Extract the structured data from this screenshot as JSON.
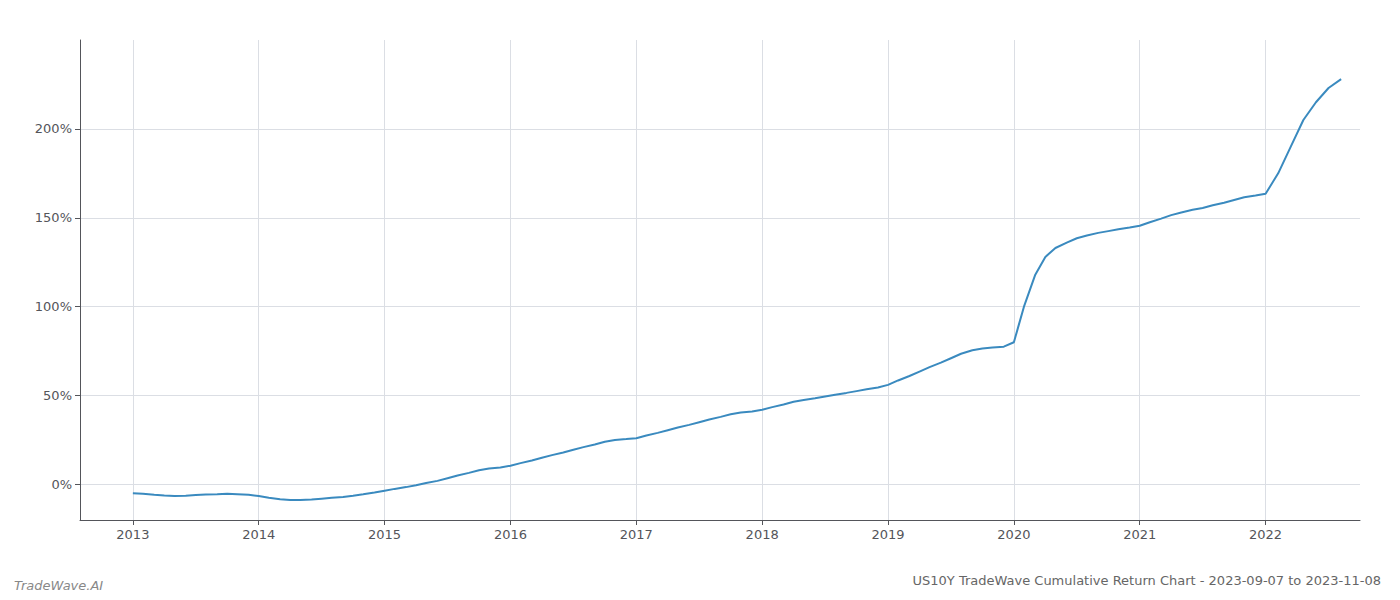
{
  "chart_data": {
    "type": "line",
    "title": "US10Y TradeWave Cumulative Return Chart - 2023-09-07 to 2023-11-08",
    "annotations": [
      "TradeWave.AI"
    ],
    "color": "#3a8abf",
    "grid": true,
    "x": [
      2013.0,
      2013.08,
      2013.17,
      2013.25,
      2013.33,
      2013.42,
      2013.5,
      2013.58,
      2013.67,
      2013.75,
      2013.83,
      2013.92,
      2014.0,
      2014.08,
      2014.17,
      2014.25,
      2014.33,
      2014.42,
      2014.5,
      2014.58,
      2014.67,
      2014.75,
      2014.83,
      2014.92,
      2015.0,
      2015.08,
      2015.17,
      2015.25,
      2015.33,
      2015.42,
      2015.5,
      2015.58,
      2015.67,
      2015.75,
      2015.83,
      2015.92,
      2016.0,
      2016.08,
      2016.17,
      2016.25,
      2016.33,
      2016.42,
      2016.5,
      2016.58,
      2016.67,
      2016.75,
      2016.83,
      2016.92,
      2017.0,
      2017.08,
      2017.17,
      2017.25,
      2017.33,
      2017.42,
      2017.5,
      2017.58,
      2017.67,
      2017.75,
      2017.83,
      2017.92,
      2018.0,
      2018.08,
      2018.17,
      2018.25,
      2018.33,
      2018.42,
      2018.5,
      2018.58,
      2018.67,
      2018.75,
      2018.83,
      2018.92,
      2019.0,
      2019.08,
      2019.17,
      2019.25,
      2019.33,
      2019.42,
      2019.5,
      2019.58,
      2019.67,
      2019.75,
      2019.83,
      2019.92,
      2020.0,
      2020.08,
      2020.17,
      2020.25,
      2020.33,
      2020.42,
      2020.5,
      2020.58,
      2020.67,
      2020.75,
      2020.83,
      2020.92,
      2021.0,
      2021.08,
      2021.17,
      2021.25,
      2021.33,
      2021.42,
      2021.5,
      2021.58,
      2021.67,
      2021.75,
      2021.83,
      2021.92,
      2022.0,
      2022.1,
      2022.2,
      2022.3,
      2022.4,
      2022.5,
      2022.6
    ],
    "values": [
      -5.0,
      -5.3,
      -5.8,
      -6.2,
      -6.5,
      -6.3,
      -6.0,
      -5.7,
      -5.5,
      -5.3,
      -5.5,
      -5.8,
      -6.5,
      -7.5,
      -8.3,
      -8.8,
      -8.8,
      -8.5,
      -8.0,
      -7.5,
      -7.0,
      -6.3,
      -5.5,
      -4.5,
      -3.5,
      -2.5,
      -1.5,
      -0.5,
      0.8,
      2.0,
      3.5,
      5.0,
      6.5,
      8.0,
      9.0,
      9.5,
      10.5,
      12.0,
      13.5,
      15.0,
      16.5,
      18.0,
      19.5,
      21.0,
      22.5,
      24.0,
      25.0,
      25.5,
      26.0,
      27.5,
      29.0,
      30.5,
      32.0,
      33.5,
      35.0,
      36.5,
      38.0,
      39.5,
      40.5,
      41.0,
      42.0,
      43.5,
      45.0,
      46.5,
      47.5,
      48.5,
      49.5,
      50.5,
      51.5,
      52.5,
      53.5,
      54.5,
      56.0,
      58.5,
      61.0,
      63.5,
      66.0,
      68.5,
      71.0,
      73.5,
      75.5,
      76.5,
      77.0,
      77.5,
      80.0,
      100.0,
      118.0,
      128.0,
      133.0,
      136.0,
      138.5,
      140.0,
      141.5,
      142.5,
      143.5,
      144.5,
      145.5,
      147.5,
      149.5,
      151.5,
      153.0,
      154.5,
      155.5,
      157.0,
      158.5,
      160.0,
      161.5,
      162.5,
      163.5,
      175.0,
      190.0,
      205.0,
      215.0,
      223.0,
      228.0
    ],
    "xlim": [
      2012.58,
      2022.75
    ],
    "xticks": [
      2013,
      2014,
      2015,
      2016,
      2017,
      2018,
      2019,
      2020,
      2021,
      2022
    ],
    "ylim": [
      -20,
      250
    ],
    "yticks": [
      {
        "value": 0,
        "label": "0%"
      },
      {
        "value": 50,
        "label": "50%"
      },
      {
        "value": 100,
        "label": "100%"
      },
      {
        "value": 150,
        "label": "150%"
      },
      {
        "value": 200,
        "label": "200%"
      }
    ]
  }
}
